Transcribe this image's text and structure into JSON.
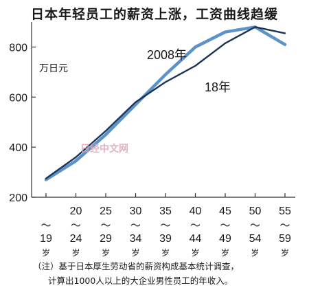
{
  "chart_data": {
    "type": "line",
    "title": "日本年轻员工的薪资上涨，工资曲线趋缓",
    "unit_label": "万日元",
    "ylim": [
      200,
      900
    ],
    "yticks": [
      200,
      400,
      600,
      800
    ],
    "categories": [
      {
        "from": "",
        "to": "19",
        "suffix": "岁"
      },
      {
        "from": "20",
        "to": "24",
        "suffix": "岁"
      },
      {
        "from": "25",
        "to": "29",
        "suffix": "岁"
      },
      {
        "from": "30",
        "to": "34",
        "suffix": "岁"
      },
      {
        "from": "35",
        "to": "39",
        "suffix": "岁"
      },
      {
        "from": "40",
        "to": "44",
        "suffix": "岁"
      },
      {
        "from": "45",
        "to": "49",
        "suffix": "岁"
      },
      {
        "from": "50",
        "to": "54",
        "suffix": "岁"
      },
      {
        "from": "55",
        "to": "59",
        "suffix": "岁"
      }
    ],
    "series": [
      {
        "name": "2008年",
        "color": "#5b93c9",
        "values": [
          270,
          345,
          450,
          570,
          690,
          800,
          860,
          880,
          810
        ]
      },
      {
        "name": "18年",
        "color": "#1b3354",
        "values": [
          275,
          360,
          465,
          580,
          660,
          725,
          815,
          880,
          855
        ]
      }
    ],
    "grid": false,
    "watermark": "日经中文网"
  },
  "note": {
    "line1": "（注）基于日本厚生劳动省的薪资构成基本统计调查，",
    "line2": "计算出1000人以上的大企业男性员工的年收入。"
  }
}
